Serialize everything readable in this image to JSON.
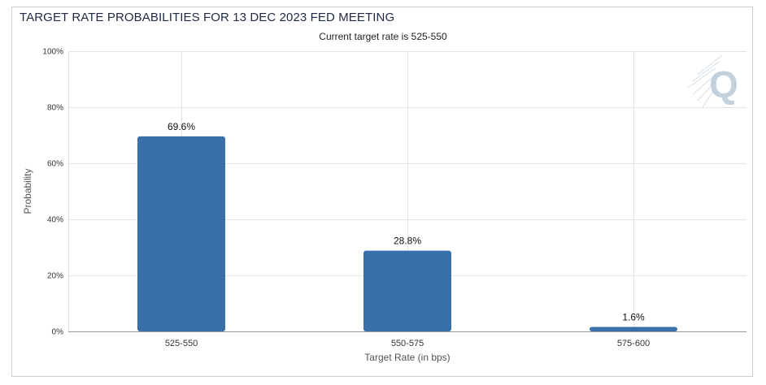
{
  "title": "TARGET RATE PROBABILITIES FOR 13 DEC 2023 FED MEETING",
  "subtitle": "Current target rate is 525-550",
  "watermark": "Q",
  "colors": {
    "bar": "#3a70aa",
    "title": "#1f2a44",
    "watermark": "#b9c9d8"
  },
  "chart_data": {
    "type": "bar",
    "title": "TARGET RATE PROBABILITIES FOR 13 DEC 2023 FED MEETING",
    "subtitle": "Current target rate is 525-550",
    "xlabel": "Target Rate (in bps)",
    "ylabel": "Probability",
    "categories": [
      "525-550",
      "550-575",
      "575-600"
    ],
    "values": [
      69.6,
      28.8,
      1.6
    ],
    "data_labels": [
      "69.6%",
      "28.8%",
      "1.6%"
    ],
    "ylim": [
      0,
      100
    ],
    "yticks": [
      0,
      20,
      40,
      60,
      80,
      100
    ],
    "ytick_labels": [
      "0%",
      "20%",
      "40%",
      "60%",
      "80%",
      "100%"
    ],
    "grid": true,
    "legend": "none"
  }
}
